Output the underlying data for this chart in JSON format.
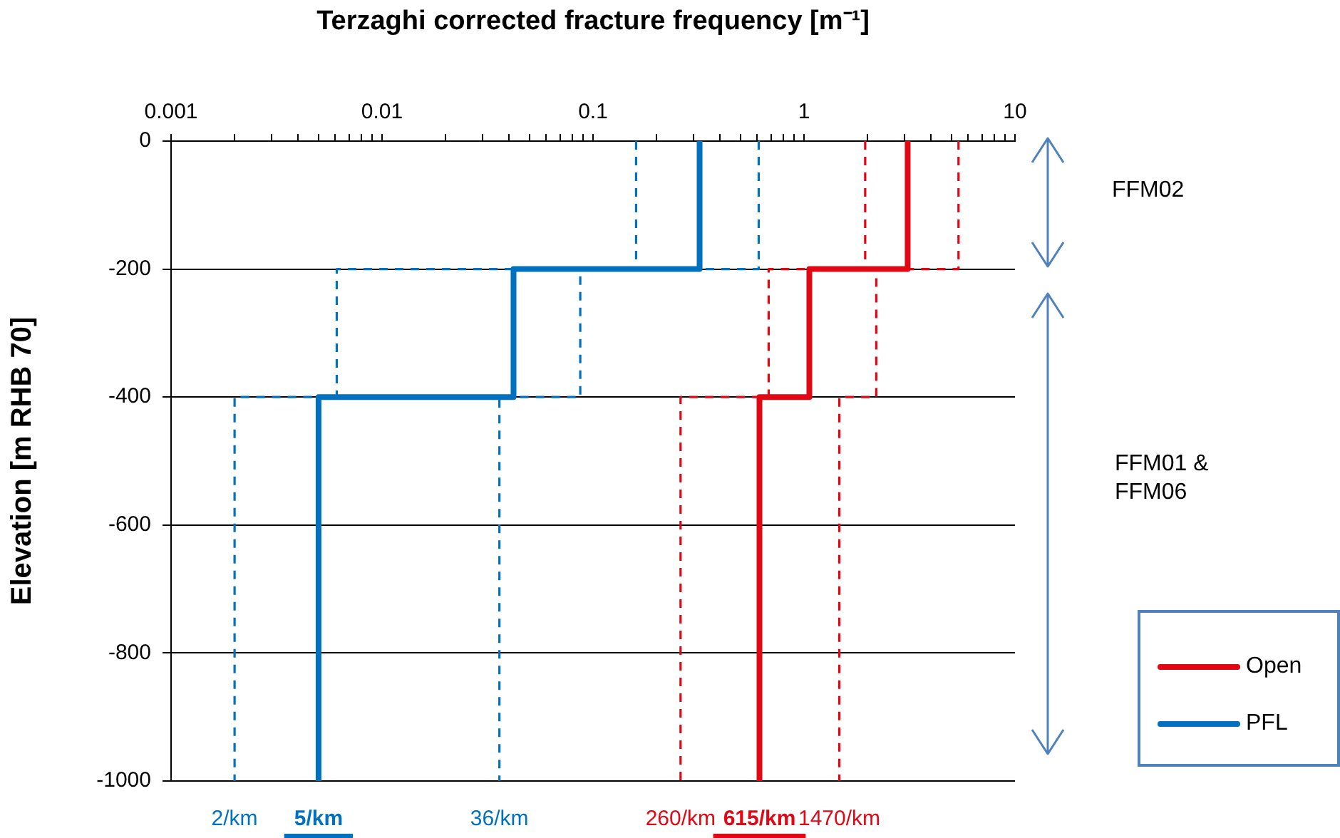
{
  "chart_data": {
    "type": "line",
    "xlabel": "Terzaghi corrected fracture frequency [m⁻¹]",
    "ylabel": "Elevation [m RHB 70]",
    "log": "x",
    "grid": "y",
    "legend": "bottom right",
    "marker": "none",
    "xlim": [
      0.001,
      10
    ],
    "xticks": [
      0.001,
      {
        "value": 0.002,
        "label": null
      },
      {
        "value": 0.003,
        "label": null
      },
      {
        "value": 0.004,
        "label": null
      },
      {
        "value": 0.005,
        "label": null
      },
      {
        "value": 0.006,
        "label": null
      },
      {
        "value": 0.007,
        "label": null
      },
      {
        "value": 0.008,
        "label": null
      },
      {
        "value": 0.009,
        "label": null
      },
      0.01,
      {
        "value": 0.02,
        "label": null
      },
      {
        "value": 0.03,
        "label": null
      },
      {
        "value": 0.04,
        "label": null
      },
      {
        "value": 0.05,
        "label": null
      },
      {
        "value": 0.06,
        "label": null
      },
      {
        "value": 0.07,
        "label": null
      },
      {
        "value": 0.08,
        "label": null
      },
      {
        "value": 0.09,
        "label": null
      },
      0.1,
      {
        "value": 0.2,
        "label": null
      },
      {
        "value": 0.3,
        "label": null
      },
      {
        "value": 0.4,
        "label": null
      },
      {
        "value": 0.5,
        "label": null
      },
      {
        "value": 0.6,
        "label": null
      },
      {
        "value": 0.7,
        "label": null
      },
      {
        "value": 0.8,
        "label": null
      },
      {
        "value": 0.9,
        "label": null
      },
      1,
      {
        "value": 2,
        "label": null
      },
      {
        "value": 3,
        "label": null
      },
      {
        "value": 4,
        "label": null
      },
      {
        "value": 5,
        "label": null
      },
      {
        "value": 6,
        "label": null
      },
      {
        "value": 7,
        "label": null
      },
      {
        "value": 8,
        "label": null
      },
      {
        "value": 9,
        "label": null
      },
      10
    ],
    "ylim": [
      -1000,
      0
    ],
    "yticks": [
      -1000,
      -800,
      -600,
      -400,
      -200,
      0
    ],
    "series": [
      {
        "name": "Open",
        "color": "#e30613",
        "line_style": "solid",
        "x": [
          3.1,
          3.1,
          1.06,
          1.06,
          0.615,
          0.615
        ],
        "values": [
          0,
          -200,
          -200,
          -400,
          -400,
          -1000
        ]
      },
      {
        "color": "#e30613",
        "line_style": "dashed",
        "x": [
          1.95,
          1.95,
          0.68,
          0.68,
          0.26,
          0.26
        ],
        "values": [
          0,
          -200,
          -200,
          -400,
          -400,
          -1000
        ]
      },
      {
        "color": "#e30613",
        "line_style": "dashed",
        "x": [
          5.4,
          5.4,
          2.2,
          2.2,
          1.47,
          1.47
        ],
        "values": [
          0,
          -200,
          -200,
          -400,
          -400,
          -1000
        ]
      },
      {
        "name": "PFL",
        "color": "#0070c0",
        "line_style": "solid",
        "x": [
          0.32,
          0.32,
          0.042,
          0.042,
          0.005,
          0.005
        ],
        "values": [
          0,
          -200,
          -200,
          -400,
          -400,
          -1000
        ]
      },
      {
        "color": "#0070c0",
        "line_style": "dashed",
        "x": [
          0.16,
          0.16,
          0.0061,
          0.0061,
          0.002,
          0.002
        ],
        "values": [
          0,
          -200,
          -200,
          -400,
          -400,
          -1000
        ]
      },
      {
        "color": "#0070c0",
        "line_style": "dashed",
        "x": [
          0.61,
          0.61,
          0.087,
          0.087,
          0.036,
          0.036
        ],
        "values": [
          0,
          -200,
          -200,
          -400,
          -400,
          -1000
        ]
      }
    ],
    "annotations": [
      "FFM02",
      "FFM01 & FFM06",
      {
        "text": "2/km",
        "x": 0.002,
        "y": -1000
      },
      {
        "text": "5/km",
        "x": 0.005,
        "y": -1000
      },
      {
        "text": "36/km",
        "x": 0.036,
        "y": -1000
      },
      {
        "text": "260/km",
        "x": 0.26,
        "y": -1000
      },
      {
        "text": "615/km",
        "x": 0.615,
        "y": -1000
      },
      {
        "text": "1470/km",
        "x": 1.47,
        "y": -1000
      }
    ]
  }
}
